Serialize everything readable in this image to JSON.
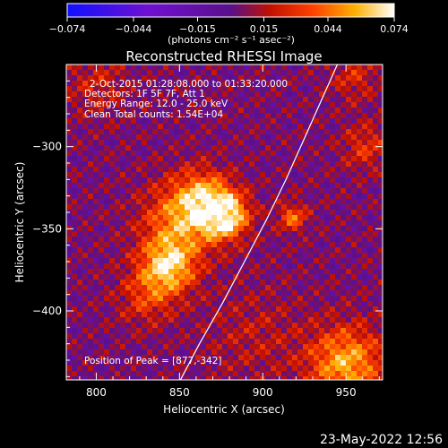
{
  "chart_data": {
    "type": "heatmap",
    "title": "Reconstructed RHESSI Image",
    "xlabel": "Heliocentric X (arcsec)",
    "ylabel": "Heliocentric Y (arcsec)",
    "xlim": [
      782,
      972
    ],
    "ylim": [
      -442,
      -250
    ],
    "x_ticks": [
      800,
      850,
      900,
      950
    ],
    "y_ticks": [
      -300,
      -350,
      -400
    ],
    "colorbar": {
      "min": -0.074,
      "max": 0.074,
      "ticks": [
        -0.074,
        -0.044,
        -0.015,
        0.015,
        0.044,
        0.074
      ],
      "tick_labels": [
        "−0.074",
        "−0.044",
        "−0.015",
        "0.015",
        "0.044",
        "0.074"
      ],
      "units_label": "(photons cm⁻² s⁻¹ asec⁻²)"
    },
    "annotations": [
      "2-Oct-2015 01:28:08.000 to 01:33:20.000",
      "Detectors: 1F 5F 7F, Att 1",
      "Energy Range: 12.0 - 25.0 keV",
      "Clean    Total counts: 1.54E+04"
    ],
    "peak_label": "Position of Peak = [877,-342]",
    "peak": [
      877,
      -342
    ],
    "limb_curve": [
      [
        849,
        -445
      ],
      [
        862,
        -420
      ],
      [
        876,
        -395
      ],
      [
        889,
        -370
      ],
      [
        902,
        -345
      ],
      [
        914,
        -320
      ],
      [
        925,
        -295
      ],
      [
        936,
        -270
      ],
      [
        947,
        -245
      ]
    ],
    "sources": [
      {
        "x": 877,
        "y": -342,
        "sigma": 10,
        "amp": 1.0
      },
      {
        "x": 864,
        "y": -330,
        "sigma": 12,
        "amp": 0.55
      },
      {
        "x": 843,
        "y": -373,
        "sigma": 12,
        "amp": 0.8
      },
      {
        "x": 850,
        "y": -345,
        "sigma": 16,
        "amp": 0.6
      },
      {
        "x": 830,
        "y": -392,
        "sigma": 12,
        "amp": 0.35
      },
      {
        "x": 918,
        "y": -343,
        "sigma": 6,
        "amp": 0.55
      },
      {
        "x": 950,
        "y": -432,
        "sigma": 16,
        "amp": 0.75
      },
      {
        "x": 962,
        "y": -300,
        "sigma": 10,
        "amp": 0.35
      },
      {
        "x": 955,
        "y": -258,
        "sigma": 10,
        "amp": 0.3
      },
      {
        "x": 800,
        "y": -262,
        "sigma": 14,
        "amp": 0.25
      },
      {
        "x": 895,
        "y": -415,
        "sigma": 20,
        "amp": 0.2
      }
    ],
    "grid": false,
    "legend": "none"
  },
  "footer": {
    "timestamp": "23-May-2022 12:56"
  }
}
